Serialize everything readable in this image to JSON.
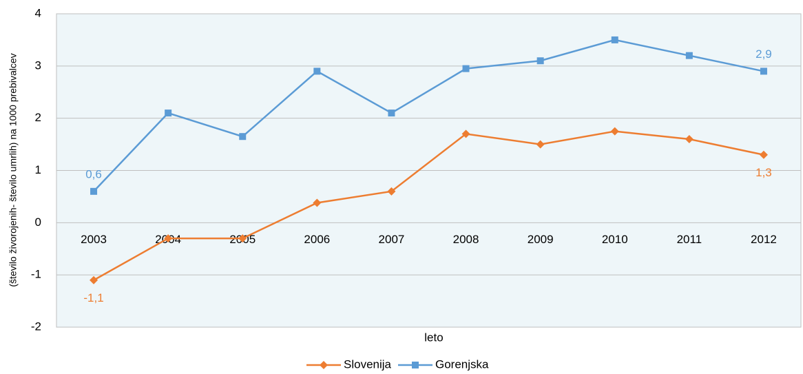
{
  "chart_data": {
    "type": "line",
    "y_label": "(število živorojenih- število umrlih) na 1000 prebivalcev",
    "x_label": "leto",
    "categories": [
      "2003",
      "2004",
      "2005",
      "2006",
      "2007",
      "2008",
      "2009",
      "2010",
      "2011",
      "2012"
    ],
    "series": [
      {
        "name": "Slovenija",
        "color": "#ed7d31",
        "marker": "diamond",
        "values": [
          -1.1,
          -0.3,
          -0.3,
          0.38,
          0.6,
          1.7,
          1.5,
          1.75,
          1.6,
          1.3
        ],
        "value_labels": [
          "-1,1",
          null,
          null,
          null,
          null,
          null,
          null,
          null,
          null,
          "1,3"
        ]
      },
      {
        "name": "Gorenjska",
        "color": "#5b9bd5",
        "marker": "square",
        "values": [
          0.6,
          2.1,
          1.65,
          2.9,
          2.1,
          2.95,
          3.1,
          3.5,
          3.2,
          2.9
        ],
        "value_labels": [
          "0,6",
          null,
          null,
          null,
          null,
          null,
          null,
          null,
          null,
          "2,9"
        ]
      }
    ],
    "ylim": [
      -2,
      4
    ],
    "yticks": [
      -2,
      -1,
      0,
      1,
      2,
      3,
      4
    ],
    "grid": true,
    "legend": "bottom"
  }
}
